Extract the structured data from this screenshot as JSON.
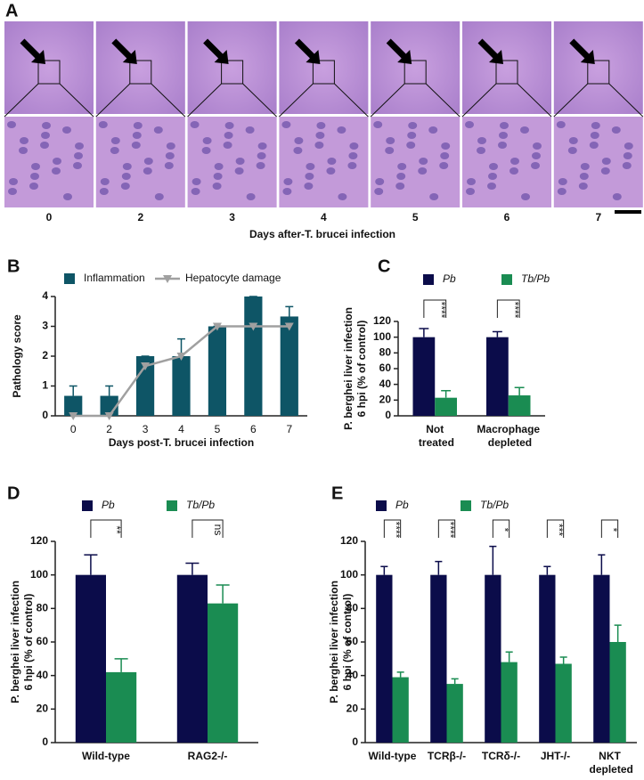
{
  "histology": {
    "label": "A",
    "days": [
      "0",
      "2",
      "3",
      "4",
      "5",
      "6",
      "7"
    ],
    "caption": "Days after-T. brucei infection"
  },
  "chart_data": [
    {
      "type": "bar",
      "panel": "B",
      "ylabel": [
        "Pathology score"
      ],
      "xlabel": "Days post-T. brucei infection",
      "categories": [
        "0",
        "2",
        "3",
        "4",
        "5",
        "6",
        "7"
      ],
      "series": [
        {
          "name": "Inflammation",
          "type": "bar",
          "color": "#0e5566",
          "values": [
            0.67,
            0.67,
            2,
            2,
            3,
            4,
            3.33
          ],
          "errors": [
            0.33,
            0.33,
            0,
            0.58,
            0,
            0,
            0.33
          ]
        },
        {
          "name": "Hepatocyte damage",
          "type": "line",
          "color": "#a0a0a0",
          "values": [
            0,
            0,
            1.67,
            2,
            3,
            3,
            3
          ]
        }
      ],
      "ylim": [
        0,
        4
      ],
      "yticks": [
        0,
        1,
        2,
        3,
        4
      ],
      "grid": false,
      "legend_italic": false
    },
    {
      "type": "bar",
      "panel": "C",
      "ylabel": [
        "P. berghei liver infection",
        "6 hpi (% of control)"
      ],
      "categories": [
        "Not treated",
        "Macrophage depleted"
      ],
      "series": [
        {
          "name": "Pb",
          "type": "bar",
          "color": "#0b0c4a",
          "values": [
            100,
            100
          ],
          "errors": [
            11,
            7
          ]
        },
        {
          "name": "Tb/Pb",
          "type": "bar",
          "color": "#1a8c52",
          "values": [
            23,
            26
          ],
          "errors": [
            9,
            10
          ]
        }
      ],
      "significance": [
        "****",
        "****"
      ],
      "ylim": [
        0,
        120
      ],
      "yticks": [
        0,
        20,
        40,
        60,
        80,
        100,
        120
      ],
      "grid": false,
      "legend_italic": true
    },
    {
      "type": "bar",
      "panel": "D",
      "ylabel": [
        "P. berghei liver infection",
        "6 hpi (% of control)"
      ],
      "categories": [
        "Wild-type",
        "RAG2-/-"
      ],
      "series": [
        {
          "name": "Pb",
          "type": "bar",
          "color": "#0b0c4a",
          "values": [
            100,
            100
          ],
          "errors": [
            12,
            7
          ]
        },
        {
          "name": "Tb/Pb",
          "type": "bar",
          "color": "#1a8c52",
          "values": [
            42,
            83
          ],
          "errors": [
            8,
            11
          ]
        }
      ],
      "significance": [
        "**",
        "ns"
      ],
      "ylim": [
        0,
        120
      ],
      "yticks": [
        0,
        20,
        40,
        60,
        80,
        100,
        120
      ],
      "grid": false,
      "legend_italic": true
    },
    {
      "type": "bar",
      "panel": "E",
      "ylabel": [
        "P. berghei liver infection",
        "6 hpi (% of control)"
      ],
      "categories": [
        "Wild-type",
        "TCRβ-/-",
        "TCRδ-/-",
        "JHT-/-",
        "NKT depleted"
      ],
      "series": [
        {
          "name": "Pb",
          "type": "bar",
          "color": "#0b0c4a",
          "values": [
            100,
            100,
            100,
            100,
            100
          ],
          "errors": [
            5,
            8,
            17,
            5,
            12
          ]
        },
        {
          "name": "Tb/Pb",
          "type": "bar",
          "color": "#1a8c52",
          "values": [
            39,
            35,
            48,
            47,
            60
          ],
          "errors": [
            3,
            3,
            6,
            4,
            10
          ]
        }
      ],
      "significance": [
        "****",
        "****",
        "*",
        "***",
        "*"
      ],
      "ylim": [
        0,
        120
      ],
      "yticks": [
        0,
        20,
        40,
        60,
        80,
        100,
        120
      ],
      "grid": false,
      "legend_italic": true
    }
  ]
}
